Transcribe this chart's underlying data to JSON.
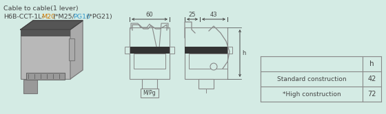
{
  "bg_color": "#d4ebe4",
  "title_line1": "Cable to cable(1 lever)",
  "title_line2_parts": [
    {
      "text": "H6B-CCT-1L-",
      "color": "#444444"
    },
    {
      "text": "M20",
      "color": "#cc7700"
    },
    {
      "text": "(*M25/",
      "color": "#444444"
    },
    {
      "text": "PG16",
      "color": "#3399cc"
    },
    {
      "text": "/*PG21)",
      "color": "#444444"
    }
  ],
  "table_header": "h",
  "table_rows": [
    {
      "label": "Standard construction",
      "value": "42"
    },
    {
      "label": "*High construction",
      "value": "72"
    }
  ],
  "dim_top": "60",
  "dim_side1": "25",
  "dim_side2": "43",
  "dim_h_label": "h",
  "label_mpg": "M/Pg",
  "line_color": "#888888",
  "text_color": "#444444"
}
